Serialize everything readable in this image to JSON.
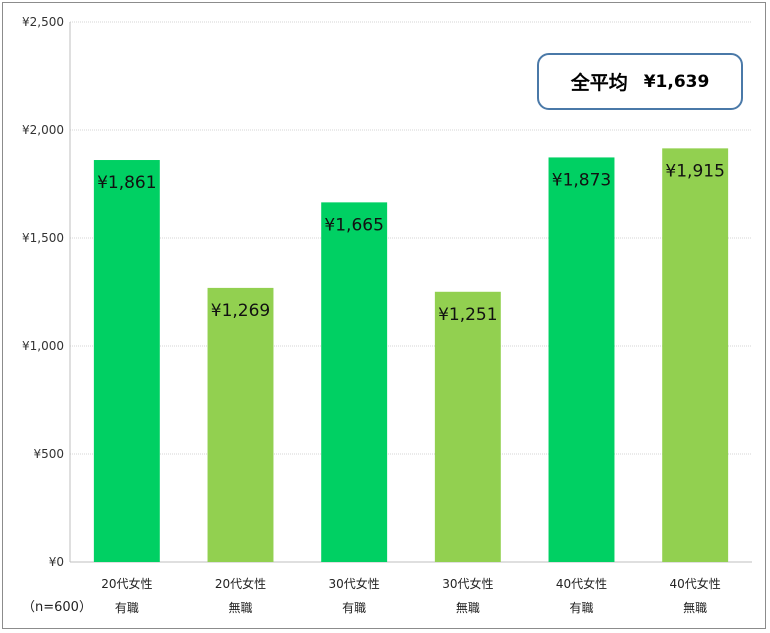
{
  "chart_data": {
    "type": "bar",
    "categories": [
      [
        "20代女性",
        "有職"
      ],
      [
        "20代女性",
        "無職"
      ],
      [
        "30代女性",
        "有職"
      ],
      [
        "30代女性",
        "無職"
      ],
      [
        "40代女性",
        "有職"
      ],
      [
        "40代女性",
        "無職"
      ]
    ],
    "values": [
      1861,
      1269,
      1665,
      1251,
      1873,
      1915
    ],
    "data_labels": [
      "¥1,861",
      "¥1,269",
      "¥1,665",
      "¥1,251",
      "¥1,873",
      "¥1,915"
    ],
    "bar_colors": [
      "#00d063",
      "#92d050",
      "#00d063",
      "#92d050",
      "#00d063",
      "#92d050"
    ],
    "ylim": [
      0,
      2500
    ],
    "yticks": [
      0,
      500,
      1000,
      1500,
      2000,
      2500
    ],
    "ytick_labels": [
      "¥0",
      "¥500",
      "¥1,000",
      "¥1,500",
      "¥2,000",
      "¥2,500"
    ],
    "grid": true,
    "sample_note": "（n=600）",
    "average_box": {
      "title": "全平均",
      "value": "¥1,639"
    }
  }
}
